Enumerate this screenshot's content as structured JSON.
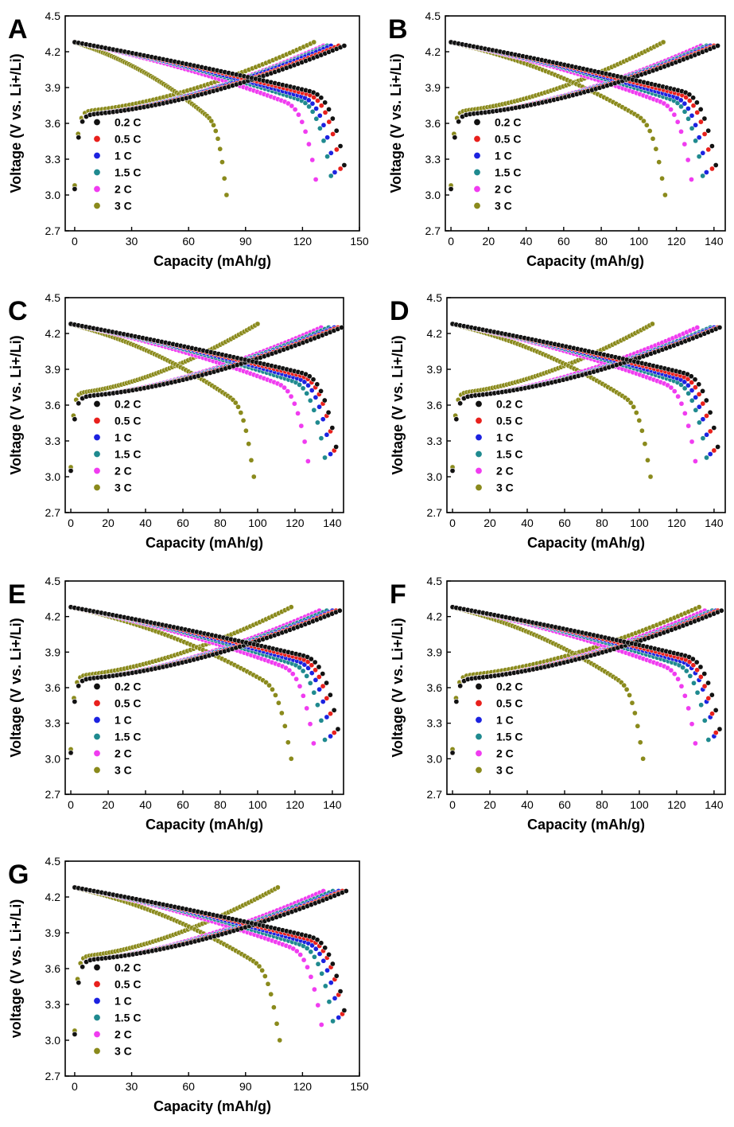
{
  "chart_data": [
    {
      "panel": "A",
      "type": "scatter",
      "xlabel": "Capacity (mAh/g)",
      "ylabel": "Voltage (V vs. Li+/Li)",
      "xlim": [
        -5,
        150
      ],
      "ylim": [
        2.7,
        4.5
      ],
      "xticks": [
        0,
        30,
        60,
        90,
        120,
        150
      ],
      "yticks": [
        2.7,
        3.0,
        3.3,
        3.6,
        3.9,
        4.2,
        4.5
      ],
      "legend_labels": [
        "0.2 C",
        "0.5 C",
        "1 C",
        "1.5 C",
        "2 C",
        "3 C"
      ],
      "discharge_capacity": [
        142,
        140,
        137,
        135,
        127,
        80
      ],
      "charge_capacity": [
        142,
        139,
        135,
        133,
        131,
        126
      ]
    },
    {
      "panel": "B",
      "type": "scatter",
      "xlabel": "Capacity (mAh/g)",
      "ylabel": "Voltage (V vs. Li+/Li)",
      "xlim": [
        -3,
        146
      ],
      "ylim": [
        2.7,
        4.5
      ],
      "xticks": [
        0,
        20,
        40,
        60,
        80,
        100,
        120,
        140
      ],
      "yticks": [
        2.7,
        3.0,
        3.3,
        3.6,
        3.9,
        4.2,
        4.5
      ],
      "legend_labels": [
        "0.2 C",
        "0.5 C",
        "1 C",
        "1.5 C",
        "2 C",
        "3 C"
      ],
      "discharge_capacity": [
        141,
        139,
        136,
        134,
        128,
        114
      ],
      "charge_capacity": [
        142,
        140,
        138,
        136,
        133,
        113
      ]
    },
    {
      "panel": "C",
      "type": "scatter",
      "xlabel": "Capacity (mAh/g)",
      "ylabel": "Voltage (V vs. Li+/Li)",
      "xlim": [
        -3,
        146
      ],
      "ylim": [
        2.7,
        4.5
      ],
      "xticks": [
        0,
        20,
        40,
        60,
        80,
        100,
        120,
        140
      ],
      "yticks": [
        2.7,
        3.0,
        3.3,
        3.6,
        3.9,
        4.2,
        4.5
      ],
      "legend_labels": [
        "0.2 C",
        "0.5 C",
        "1 C",
        "1.5 C",
        "2 C",
        "3 C"
      ],
      "discharge_capacity": [
        142,
        141,
        139,
        136,
        127,
        98
      ],
      "charge_capacity": [
        145,
        143,
        141,
        138,
        134,
        100
      ]
    },
    {
      "panel": "D",
      "type": "scatter",
      "xlabel": "Capacity (mAh/g)",
      "ylabel": "Voltage (V vs. Li+/Li)",
      "xlim": [
        -3,
        146
      ],
      "ylim": [
        2.7,
        4.5
      ],
      "xticks": [
        0,
        20,
        40,
        60,
        80,
        100,
        120,
        140
      ],
      "yticks": [
        2.7,
        3.0,
        3.3,
        3.6,
        3.9,
        4.2,
        4.5
      ],
      "legend_labels": [
        "0.2 C",
        "0.5 C",
        "1 C",
        "1.5 C",
        "2 C",
        "3 C"
      ],
      "discharge_capacity": [
        142,
        140,
        138,
        136,
        130,
        106
      ],
      "charge_capacity": [
        143,
        142,
        140,
        138,
        131,
        107
      ]
    },
    {
      "panel": "E",
      "type": "scatter",
      "xlabel": "Capacity (mAh/g)",
      "ylabel": "Voltage (V vs. Li+/Li)",
      "xlim": [
        -3,
        146
      ],
      "ylim": [
        2.7,
        4.5
      ],
      "xticks": [
        0,
        20,
        40,
        60,
        80,
        100,
        120,
        140
      ],
      "yticks": [
        2.7,
        3.0,
        3.3,
        3.6,
        3.9,
        4.2,
        4.5
      ],
      "legend_labels": [
        "0.2 C",
        "0.5 C",
        "1 C",
        "1.5 C",
        "2 C",
        "3 C"
      ],
      "discharge_capacity": [
        143,
        141,
        139,
        136,
        130,
        118
      ],
      "charge_capacity": [
        144,
        142,
        140,
        137,
        133,
        118
      ]
    },
    {
      "panel": "F",
      "type": "scatter",
      "xlabel": "Capacity (mAh/g)",
      "ylabel": "Voltage (V vs. Li+/Li)",
      "xlim": [
        -3,
        146
      ],
      "ylim": [
        2.7,
        4.5
      ],
      "xticks": [
        0,
        20,
        40,
        60,
        80,
        100,
        120,
        140
      ],
      "yticks": [
        2.7,
        3.0,
        3.3,
        3.6,
        3.9,
        4.2,
        4.5
      ],
      "legend_labels": [
        "0.2 C",
        "0.5 C",
        "1 C",
        "1.5 C",
        "2 C",
        "3 C"
      ],
      "discharge_capacity": [
        143,
        141,
        140,
        137,
        130,
        102
      ],
      "charge_capacity": [
        144,
        142,
        141,
        139,
        135,
        132
      ]
    },
    {
      "panel": "G",
      "type": "scatter",
      "xlabel": "Capacity (mAh/g)",
      "ylabel": "voltage (V vs. Li+/Li)",
      "xlim": [
        -5,
        150
      ],
      "ylim": [
        2.7,
        4.5
      ],
      "xticks": [
        0,
        30,
        60,
        90,
        120,
        150
      ],
      "yticks": [
        2.7,
        3.0,
        3.3,
        3.6,
        3.9,
        4.2,
        4.5
      ],
      "legend_labels": [
        "0.2 C",
        "0.5 C",
        "1 C",
        "1.5 C",
        "2 C",
        "3 C"
      ],
      "discharge_capacity": [
        142,
        141,
        139,
        136,
        130,
        108
      ],
      "charge_capacity": [
        143,
        141,
        139,
        136,
        131,
        107
      ]
    }
  ],
  "series_colors": [
    "#111111",
    "#e8201c",
    "#1c22e0",
    "#1f8a8f",
    "#f03cf0",
    "#8a8a1c"
  ]
}
